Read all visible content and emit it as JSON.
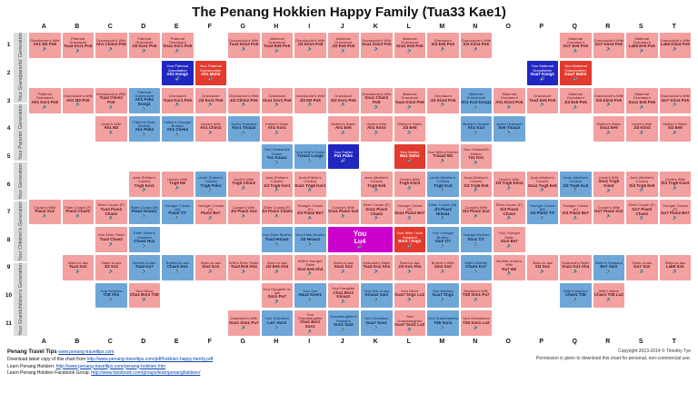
{
  "title": "The Penang Hokkien Happy Family (Tua33 Kae1)",
  "columns": [
    "A",
    "B",
    "C",
    "D",
    "E",
    "F",
    "G",
    "H",
    "I",
    "J",
    "K",
    "L",
    "M",
    "N",
    "O",
    "P",
    "Q",
    "R",
    "S",
    "T"
  ],
  "row_numbers": [
    "1",
    "2",
    "3",
    "4",
    "5",
    "6",
    "7",
    "8",
    "9",
    "10",
    "11"
  ],
  "generations": [
    {
      "label": "Your Grandparents' Generation",
      "rows": 3
    },
    {
      "label": "Your Parents' Generation",
      "rows": 3
    },
    {
      "label": "Your Generation",
      "rows": 3
    },
    {
      "label": "Your Children's Generation",
      "rows": 1
    },
    {
      "label": "Your Grandchildren's Generation",
      "rows": 1
    }
  ],
  "colors": {
    "f": "#f2a0a0",
    "m": "#6fa6d8",
    "dm": "#2026c0",
    "df": "#e23a2e",
    "you": "#cc00cc"
  },
  "speaker_icon": "🔊",
  "footer": {
    "left": [
      {
        "label": "Penang Travel Tips ",
        "link": "www.penang-traveltips.com",
        "lead": true
      },
      {
        "label": "Download latest copy of this chart from ",
        "link": "http://www.penang-traveltips.com/pdf/hokkien-happy-family.pdf",
        "lead": false
      },
      {
        "label": "Learn Penang Hokkien: ",
        "link": "http://www.penang-traveltips.com/penang-hokkien.htm",
        "lead": false
      },
      {
        "label": "Learn Penang Hokkien Facebook Group: ",
        "link": "http://www.facebook.com/groups/learnpenanghokkien/",
        "lead": false
      }
    ],
    "right": [
      "Copyright 2013-2014 © Timothy Tye",
      "Permission is given to download this chart for personal, non-commercial use."
    ]
  },
  "cells": [
    {
      "r": 1,
      "c": "A",
      "k": "f",
      "en": "Granduncle's Wife",
      "hk": "Ah1 M2 Po5"
    },
    {
      "r": 1,
      "c": "B",
      "k": "f",
      "en": "Paternal Grandaunt",
      "hk": "Tua3 Kor1 Po5"
    },
    {
      "r": 1,
      "c": "C",
      "k": "f",
      "en": "Granduncle's Wife",
      "hk": "Ah1 Chim2 Po5"
    },
    {
      "r": 1,
      "c": "D",
      "k": "f",
      "en": "Paternal Grandaunt",
      "hk": "Ji3 Kor1 Po5"
    },
    {
      "r": 1,
      "c": "E",
      "k": "f",
      "en": "Paternal Grandaunt",
      "hk": "Sna1 Kor1 Po5"
    },
    {
      "r": 1,
      "c": "G",
      "k": "f",
      "en": "Granduncle's Wife",
      "hk": "Tua3 Kim3 Po5"
    },
    {
      "r": 1,
      "c": "H",
      "k": "f",
      "en": "Maternal Grandaunt",
      "hk": "Tua3 Ee5 Po5"
    },
    {
      "r": 1,
      "c": "I",
      "k": "f",
      "en": "Granduncle's Wife",
      "hk": "Ji3 Kim3 Po5"
    },
    {
      "r": 1,
      "c": "J",
      "k": "f",
      "en": "Maternal Grandaunt",
      "hk": "Ji3 Ee5 Po5"
    },
    {
      "r": 1,
      "c": "K",
      "k": "f",
      "en": "Granduncle's Wife",
      "hk": "Sna1 Kim3 Po5"
    },
    {
      "r": 1,
      "c": "L",
      "k": "f",
      "en": "Maternal Grandaunt",
      "hk": "Sna1 Ee5 Po5"
    },
    {
      "r": 1,
      "c": "M",
      "k": "f",
      "en": "Grandaunt",
      "hk": "Si3 Ee5 Po5"
    },
    {
      "r": 1,
      "c": "N",
      "k": "f",
      "en": "Granduncle's Wife",
      "hk": "Si3 Kim3 Po5"
    },
    {
      "r": 1,
      "c": "Q",
      "k": "f",
      "en": "Maternal Grandaunt",
      "hk": "Go7 Ee5 Po5"
    },
    {
      "r": 1,
      "c": "R",
      "k": "f",
      "en": "Granduncle's Wife",
      "hk": "Go7 Kim3 Po5"
    },
    {
      "r": 1,
      "c": "S",
      "k": "f",
      "en": "Maternal Grandaunt",
      "hk": "Lak8 Ee5 Po5"
    },
    {
      "r": 1,
      "c": "T",
      "k": "f",
      "en": "Granduncle's Wife",
      "hk": "Lak8 Kim3 Po5"
    },
    {
      "r": 2,
      "c": "E",
      "k": "dm",
      "en": "Your Paternal Grandfather",
      "hk": "Ah1 Kong1"
    },
    {
      "r": 2,
      "c": "F",
      "k": "df",
      "en": "Your Paternal Grandmother",
      "hk": "Ah1 Mah2"
    },
    {
      "r": 2,
      "c": "P",
      "k": "dm",
      "en": "Your Maternal Grandfather",
      "hk": "Gua7 Kong1"
    },
    {
      "r": 2,
      "c": "Q",
      "k": "df",
      "en": "Your Maternal Grandmother",
      "hk": "Gua7 Mah2"
    },
    {
      "r": 3,
      "c": "A",
      "k": "f",
      "en": "Paternal Grandaunt",
      "hk": "Ah1 Kor1 Po5"
    },
    {
      "r": 3,
      "c": "B",
      "k": "f",
      "en": "Granduncle's Wife",
      "hk": "Ah1 M2 Po5"
    },
    {
      "r": 3,
      "c": "C",
      "k": "f",
      "en": "Granduncle's Wife",
      "hk": "Tua3 Chim2 Po5"
    },
    {
      "r": 3,
      "c": "D",
      "k": "m",
      "en": "Paternal Granduncle",
      "hk": "Ah1 Pek4 Kong1"
    },
    {
      "r": 3,
      "c": "E",
      "k": "f",
      "en": "Grandaunt",
      "hk": "Tua3 Kor1 Po5"
    },
    {
      "r": 3,
      "c": "F",
      "k": "f",
      "en": "Grandaunt",
      "hk": "Ji3 Kor1 Po5"
    },
    {
      "r": 3,
      "c": "G",
      "k": "f",
      "en": "Granduncle's Wife",
      "hk": "Ji3 Chim2 Po5"
    },
    {
      "r": 3,
      "c": "H",
      "k": "f",
      "en": "Grandaunt",
      "hk": "Sna1 Kor1 Po5"
    },
    {
      "r": 3,
      "c": "I",
      "k": "f",
      "en": "Granduncle's Wife",
      "hk": "Ji3 M2 Po5"
    },
    {
      "r": 3,
      "c": "J",
      "k": "f",
      "en": "Grandaunt",
      "hk": "Si3 Kor1 Po5"
    },
    {
      "r": 3,
      "c": "K",
      "k": "f",
      "en": "Granduncle's Wife",
      "hk": "Sna1 Chim2 Po5"
    },
    {
      "r": 3,
      "c": "L",
      "k": "f",
      "en": "Maternal Grandaunt",
      "hk": "Tua3 Kim3 Po5"
    },
    {
      "r": 3,
      "c": "M",
      "k": "f",
      "en": "Grandaunt",
      "hk": "Ji3 Kim3 Po5"
    },
    {
      "r": 3,
      "c": "N",
      "k": "m",
      "en": "Maternal Granduncle",
      "hk": "Ah1 Ku3 Kong1"
    },
    {
      "r": 3,
      "c": "O",
      "k": "f",
      "en": "Maternal Grandaunt",
      "hk": "Ah1 Kim3 Po5"
    },
    {
      "r": 3,
      "c": "P",
      "k": "f",
      "en": "Grandaunt",
      "hk": "Tua3 Ee5 Po5"
    },
    {
      "r": 3,
      "c": "Q",
      "k": "f",
      "en": "Maternal Grandaunt",
      "hk": "Ji3 Ee5 Po5"
    },
    {
      "r": 3,
      "c": "R",
      "k": "f",
      "en": "Granduncle's Wife",
      "hk": "Si3 Kim3 Po5"
    },
    {
      "r": 3,
      "c": "S",
      "k": "f",
      "en": "Maternal Grandaunt",
      "hk": "Sna1 Ee5 Po5"
    },
    {
      "r": 3,
      "c": "T",
      "k": "f",
      "en": "Granduncle's Wife",
      "hk": "Go7 Kim3 Po5"
    },
    {
      "r": 4,
      "c": "C",
      "k": "f",
      "en": "Uncle's Wife",
      "hk": "Ah1 M2"
    },
    {
      "r": 4,
      "c": "D",
      "k": "m",
      "en": "Father's Elder Brother",
      "hk": "Ah1 Pek4"
    },
    {
      "r": 4,
      "c": "E",
      "k": "m",
      "en": "Father's Younger Brother",
      "hk": "Ah1 Chek4"
    },
    {
      "r": 4,
      "c": "F",
      "k": "f",
      "en": "Uncle's Wife",
      "hk": "Ah1 Chim2"
    },
    {
      "r": 4,
      "c": "G",
      "k": "m",
      "en": "Aunt's Husband",
      "hk": "Kor1 Tniaa3"
    },
    {
      "r": 4,
      "c": "H",
      "k": "f",
      "en": "Father's Sister",
      "hk": "Ah1 Kor1"
    },
    {
      "r": 4,
      "c": "J",
      "k": "f",
      "en": "Mother's Sister",
      "hk": "Ah1 Ee5"
    },
    {
      "r": 4,
      "c": "K",
      "k": "f",
      "en": "Uncle's Wife",
      "hk": "Ah1 Kim3"
    },
    {
      "r": 4,
      "c": "L",
      "k": "f",
      "en": "Mother's Sister",
      "hk": "Ji3 Ee5"
    },
    {
      "r": 4,
      "c": "N",
      "k": "m",
      "en": "Mother's Brother",
      "hk": "Ah1 Ku3"
    },
    {
      "r": 4,
      "c": "O",
      "k": "m",
      "en": "Aunt's Husband",
      "hk": "Ee5 Tniaa3"
    },
    {
      "r": 4,
      "c": "R",
      "k": "f",
      "en": "Mother's Sister",
      "hk": "Sna1 Ee5"
    },
    {
      "r": 4,
      "c": "S",
      "k": "f",
      "en": "Uncle's Wife",
      "hk": "Ji3 Kim3"
    },
    {
      "r": 4,
      "c": "T",
      "k": "f",
      "en": "Mother's Sister",
      "hk": "Si3 Ee5"
    },
    {
      "r": 5,
      "c": "H",
      "k": "m",
      "en": "Your Husband's Father",
      "hk": "Ta1 Kuaa1"
    },
    {
      "r": 5,
      "c": "I",
      "k": "m",
      "en": "Your Wife's Father",
      "hk": "Tniaa3 Lang5"
    },
    {
      "r": 5,
      "c": "J",
      "k": "dm",
      "en": "Your Father",
      "hk": "Pa1 Pah4"
    },
    {
      "r": 5,
      "c": "L",
      "k": "df",
      "en": "Your Mother",
      "hk": "Ma1 Mah4"
    },
    {
      "r": 5,
      "c": "M",
      "k": "f",
      "en": "Your Wife's Mother",
      "hk": "Tniaa3 M2"
    },
    {
      "r": 5,
      "c": "N",
      "k": "f",
      "en": "Your Husband's Mother",
      "hk": "Ta1 Ke1"
    },
    {
      "r": 6,
      "c": "D",
      "k": "f",
      "en": "Aunt (Father's Cousin)",
      "hk": "Tng5 Kor1"
    },
    {
      "r": 6,
      "c": "E",
      "k": "f",
      "en": "Uncle's Wife",
      "hk": "Tng5 M2"
    },
    {
      "r": 6,
      "c": "F",
      "k": "m",
      "en": "Uncle (Father's Cousin)",
      "hk": "Tng5 Pek4"
    },
    {
      "r": 6,
      "c": "G",
      "k": "f",
      "en": "Uncle's Wife",
      "hk": "Tng5 Chim2"
    },
    {
      "r": 6,
      "c": "H",
      "k": "f",
      "en": "Aunt (Father's Cousin)",
      "hk": "Ji3 Tng5 Kor1"
    },
    {
      "r": 6,
      "c": "I",
      "k": "f",
      "en": "Aunt (Father's Cousin)",
      "hk": "Sna1 Tng5 Kor1"
    },
    {
      "r": 6,
      "c": "K",
      "k": "f",
      "en": "Aunt (Mother's Cousin)",
      "hk": "Tng5 Ee5"
    },
    {
      "r": 6,
      "c": "L",
      "k": "f",
      "en": "Uncle's Wife",
      "hk": "Tng5 Kim3"
    },
    {
      "r": 6,
      "c": "M",
      "k": "m",
      "en": "Uncle (Mother's Cousin)",
      "hk": "Tng5 Ku3"
    },
    {
      "r": 6,
      "c": "N",
      "k": "f",
      "en": "Aunt (Mother's Cousin)",
      "hk": "Ji3 Tng5 Ee5"
    },
    {
      "r": 6,
      "c": "O",
      "k": "f",
      "en": "Uncle's Wife",
      "hk": "Ji3 Tng5 Kim3"
    },
    {
      "r": 6,
      "c": "P",
      "k": "f",
      "en": "Aunt (Mother's Cousin)",
      "hk": "Sna1 Tng5 Ee5"
    },
    {
      "r": 6,
      "c": "Q",
      "k": "m",
      "en": "Uncle (Mother's Cousin)",
      "hk": "Ji3 Tng5 Ku3"
    },
    {
      "r": 6,
      "c": "R",
      "k": "f",
      "en": "Uncle's Wife",
      "hk": "Sna1 Tng5 Kim3"
    },
    {
      "r": 6,
      "c": "S",
      "k": "f",
      "en": "Aunt (Mother's Cousin)",
      "hk": "Si3 Tng5 Ee5"
    },
    {
      "r": 6,
      "c": "T",
      "k": "f",
      "en": "Uncle's Wife",
      "hk": "Si3 Tng5 Kim3"
    },
    {
      "r": 7,
      "c": "A",
      "k": "f",
      "en": "Cousin's Wife",
      "hk": "Piao2 So2"
    },
    {
      "r": 7,
      "c": "B",
      "k": "f",
      "en": "Elder Cousin (F)",
      "hk": "Piao2 Chae2"
    },
    {
      "r": 7,
      "c": "C",
      "k": "f",
      "en": "Elder Cousin (F)",
      "hk": "Tua3 Piao2 Chae2"
    },
    {
      "r": 7,
      "c": "D",
      "k": "m",
      "en": "Elder Cousin (M)",
      "hk": "Piao2 Hniaa1"
    },
    {
      "r": 7,
      "c": "E",
      "k": "m",
      "en": "Younger Cousin (M)",
      "hk": "Piao2 Ti7"
    },
    {
      "r": 7,
      "c": "F",
      "k": "f",
      "en": "Younger Cousin (F)",
      "hk": "Piao2 Be7"
    },
    {
      "r": 7,
      "c": "G",
      "k": "f",
      "en": "Cousin's Wife",
      "hk": "Ji3 Piao2 So2"
    },
    {
      "r": 7,
      "c": "H",
      "k": "f",
      "en": "Elder Cousin (F)",
      "hk": "Ji3 Piao2 Chae2"
    },
    {
      "r": 7,
      "c": "I",
      "k": "f",
      "en": "Younger Cousin (F)",
      "hk": "Ji3 Piao2 Be7"
    },
    {
      "r": 7,
      "c": "J",
      "k": "f",
      "en": "Cousin's Wife",
      "hk": "Sna1 Piao2 So2"
    },
    {
      "r": 7,
      "c": "K",
      "k": "f",
      "en": "Elder Cousin (F)",
      "hk": "Sna1 Piao2 Chae2"
    },
    {
      "r": 7,
      "c": "L",
      "k": "f",
      "en": "Younger Cousin (F)",
      "hk": "Sna1 Piao2 Be7"
    },
    {
      "r": 7,
      "c": "M",
      "k": "m",
      "en": "Elder Cousin (M)",
      "hk": "Ji3 Piao2 Hniaa1"
    },
    {
      "r": 7,
      "c": "N",
      "k": "f",
      "en": "Cousin's Wife",
      "hk": "Si3 Piao2 So2"
    },
    {
      "r": 7,
      "c": "O",
      "k": "f",
      "en": "Elder Cousin (F)",
      "hk": "Si3 Piao2 Chae2"
    },
    {
      "r": 7,
      "c": "P",
      "k": "m",
      "en": "Younger Cousin (M)",
      "hk": "Ji3 Piao2 Ti7"
    },
    {
      "r": 7,
      "c": "Q",
      "k": "f",
      "en": "Younger Cousin (F)",
      "hk": "Si3 Piao2 Be7"
    },
    {
      "r": 7,
      "c": "R",
      "k": "f",
      "en": "Cousin's Wife",
      "hk": "Go7 Piao2 So2"
    },
    {
      "r": 7,
      "c": "S",
      "k": "f",
      "en": "Elder Cousin (F)",
      "hk": "Go7 Piao2 Chae2"
    },
    {
      "r": 7,
      "c": "T",
      "k": "f",
      "en": "Younger Cousin (F)",
      "hk": "Go7 Piao2 Be7"
    },
    {
      "r": 8,
      "c": "C",
      "k": "f",
      "en": "Your Elder Sister",
      "hk": "Tua3 Chae2"
    },
    {
      "r": 8,
      "c": "D",
      "k": "m",
      "en": "Elder Sister's Husband",
      "hk": "Chae2 Hu1"
    },
    {
      "r": 8,
      "c": "H",
      "k": "m",
      "en": "Your Elder Brother",
      "hk": "Tua3 Hniaa1"
    },
    {
      "r": 8,
      "c": "I",
      "k": "m",
      "en": "Your Elder Brother",
      "hk": "Ji3 Hniaa1"
    },
    {
      "r": 8,
      "c": "J",
      "k": "you",
      "span": 2,
      "en": "You",
      "hk": "Lu4"
    },
    {
      "r": 8,
      "c": "L",
      "k": "df",
      "en": "Your Wife / Your Husband",
      "hk": "Bor2 / Ang1"
    },
    {
      "r": 8,
      "c": "M",
      "k": "m",
      "en": "Your Younger Brother",
      "hk": "Sio2 Ti7"
    },
    {
      "r": 8,
      "c": "N",
      "k": "m",
      "en": "Younger Brother",
      "hk": "Sna1 Ti7"
    },
    {
      "r": 8,
      "c": "O",
      "k": "f",
      "en": "Your Younger Sister",
      "hk": "Sio2 Be7"
    },
    {
      "r": 9,
      "c": "B",
      "k": "f",
      "en": "Sister-in-law",
      "hk": "Tua3 So2"
    },
    {
      "r": 9,
      "c": "C",
      "k": "f",
      "en": "Sister-in-law",
      "hk": "Ji3 So2"
    },
    {
      "r": 9,
      "c": "D",
      "k": "m",
      "en": "Brother-in-law",
      "hk": "Tua3 Ku7"
    },
    {
      "r": 9,
      "c": "E",
      "k": "m",
      "en": "Brother-in-law",
      "hk": "Chae2 Hu1"
    },
    {
      "r": 9,
      "c": "F",
      "k": "f",
      "en": "Sister-in-law",
      "hk": "Sio2 Ko1"
    },
    {
      "r": 9,
      "c": "G",
      "k": "f",
      "en": "Wife's Elder Sister",
      "hk": "Tua3 Ee5 Ah4"
    },
    {
      "r": 9,
      "c": "H",
      "k": "f",
      "en": "Sister-in-law",
      "hk": "Ji3 Ee5 Ah4"
    },
    {
      "r": 9,
      "c": "I",
      "k": "f",
      "en": "Wife's Younger Sister",
      "hk": "Sio2 Ee5 Ah4"
    },
    {
      "r": 9,
      "c": "J",
      "k": "f",
      "en": "Sister-in-law",
      "hk": "Sna1 So2"
    },
    {
      "r": 9,
      "c": "K",
      "k": "f",
      "en": "Husband's Sister",
      "hk": "Tua3 Ko1 Ah4"
    },
    {
      "r": 9,
      "c": "L",
      "k": "f",
      "en": "Sister-in-law",
      "hk": "Ji3 Ko1 Ah4"
    },
    {
      "r": 9,
      "c": "M",
      "k": "f",
      "en": "Brother's Wife",
      "hk": "Sio2 So2"
    },
    {
      "r": 9,
      "c": "N",
      "k": "m",
      "en": "Wife's Brother",
      "hk": "Chae1 Ku7"
    },
    {
      "r": 9,
      "c": "O",
      "k": "f",
      "en": "Brother-in-law's Wife",
      "hk": "Ku7 M2"
    },
    {
      "r": 9,
      "c": "P",
      "k": "f",
      "en": "Sister-in-law",
      "hk": "Si3 So2"
    },
    {
      "r": 9,
      "c": "Q",
      "k": "f",
      "en": "Husband's Sister",
      "hk": "Sna1 Ko1 Ah4"
    },
    {
      "r": 9,
      "c": "R",
      "k": "m",
      "en": "Sister's Husband",
      "hk": "Be7 Sai3"
    },
    {
      "r": 9,
      "c": "S",
      "k": "f",
      "en": "Sister-in-law",
      "hk": "Go7 So2"
    },
    {
      "r": 9,
      "c": "T",
      "k": "f",
      "en": "Sister-in-law",
      "hk": "Lak8 So2"
    },
    {
      "r": 10,
      "c": "C",
      "k": "m",
      "en": "Your Nephew",
      "hk": "Tit8 Ah4"
    },
    {
      "r": 10,
      "c": "D",
      "k": "f",
      "en": "Your Niece",
      "hk": "Cha1 Bor2 Tit8"
    },
    {
      "r": 10,
      "c": "H",
      "k": "f",
      "en": "Your Daughter-in-law",
      "hk": "Sim1 Pu7"
    },
    {
      "r": 10,
      "c": "I",
      "k": "m",
      "en": "Your Son",
      "hk": "Hau3 Snee1"
    },
    {
      "r": 10,
      "c": "J",
      "k": "f",
      "en": "Your Daughter",
      "hk": "Cha1 Bor2 Kniaa2"
    },
    {
      "r": 10,
      "c": "K",
      "k": "m",
      "en": "Your Son-in-law",
      "hk": "Kniaa2 Sai3"
    },
    {
      "r": 10,
      "c": "L",
      "k": "f",
      "en": "Your Niece",
      "hk": "Gua7 Sng1 Lu2"
    },
    {
      "r": 10,
      "c": "M",
      "k": "m",
      "en": "Your Nephew",
      "hk": "Gua7 Sng1"
    },
    {
      "r": 10,
      "c": "N",
      "k": "f",
      "en": "Nephew's Wife",
      "hk": "Tit8 Sim1 Pu7"
    },
    {
      "r": 10,
      "c": "Q",
      "k": "m",
      "en": "Wife's Nephew",
      "hk": "Chae1 Tit8"
    },
    {
      "r": 10,
      "c": "R",
      "k": "f",
      "en": "Wife's Niece",
      "hk": "Chae1 Tit8 Lu2"
    },
    {
      "r": 11,
      "c": "G",
      "k": "f",
      "en": "Grandson's Wife",
      "hk": "Sun1 Sim1 Pu7"
    },
    {
      "r": 11,
      "c": "H",
      "k": "m",
      "en": "Your Grandson",
      "hk": "Lai7 Sun1"
    },
    {
      "r": 11,
      "c": "I",
      "k": "f",
      "en": "Your Granddaughter",
      "hk": "Cha1 Bor2 Sun1"
    },
    {
      "r": 11,
      "c": "J",
      "k": "m",
      "en": "Granddaughter's Husband",
      "hk": "Sun1 Sai3"
    },
    {
      "r": 11,
      "c": "K",
      "k": "m",
      "en": "Your Grandson",
      "hk": "Gua7 Sun1"
    },
    {
      "r": 11,
      "c": "L",
      "k": "f",
      "en": "Your Granddaughter",
      "hk": "Gua7 Sun1 Lu2"
    },
    {
      "r": 11,
      "c": "M",
      "k": "m",
      "en": "Your Grandnephew",
      "hk": "Tit8 Sun1"
    },
    {
      "r": 11,
      "c": "N",
      "k": "f",
      "en": "Your Grandniece",
      "hk": "Tit8 Sun1 Lu2"
    }
  ]
}
